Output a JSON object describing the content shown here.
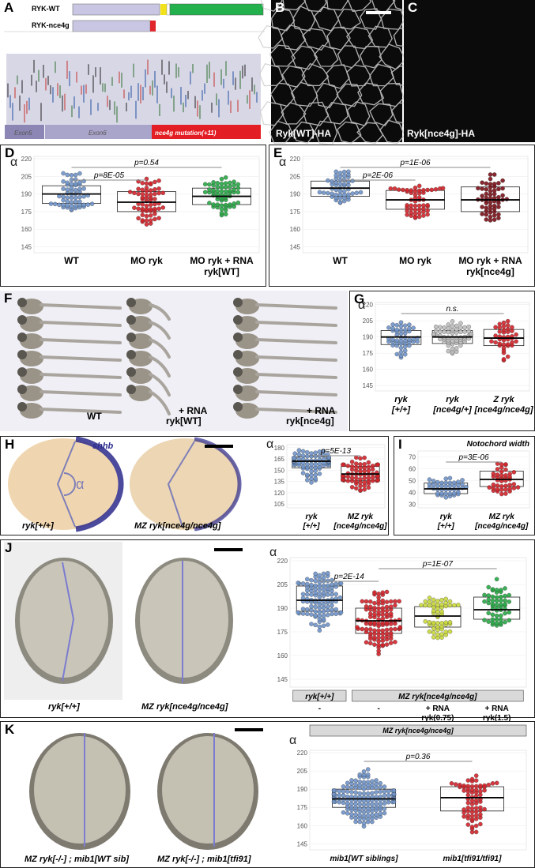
{
  "panels": {
    "A": {
      "label": "A",
      "ryk_wt": "RYK-WT",
      "ryk_nce4g": "RYK-nce4g",
      "exon5": "Exon5",
      "exon6": "Exon6",
      "mutation": "nce4g mutation(+11)"
    },
    "B": {
      "label": "B",
      "caption": "Ryk[WT]-HA"
    },
    "C": {
      "label": "C",
      "caption": "Ryk[nce4g]-HA"
    },
    "D": {
      "label": "D"
    },
    "E": {
      "label": "E"
    },
    "F": {
      "label": "F",
      "captions": [
        "WT",
        "+ RNA",
        "ryk[WT]",
        "+ RNA",
        "ryk[nce4g]"
      ]
    },
    "G": {
      "label": "G"
    },
    "H": {
      "label": "H",
      "gene": "shhb",
      "alpha": "α",
      "img_captions": [
        "ryk[+/+]",
        "MZ ryk[nce4g/nce4g]"
      ]
    },
    "I": {
      "label": "I"
    },
    "J": {
      "label": "J",
      "img_captions": [
        "ryk[+/+]",
        "MZ ryk[nce4g/nce4g]"
      ]
    },
    "K": {
      "label": "K",
      "img_captions": [
        "MZ ryk[-/-] ; mib1[WT sib]",
        "MZ ryk[-/-] ; mib1[tfi91]"
      ]
    }
  },
  "chart_data": [
    {
      "id": "D",
      "type": "scatter",
      "ylabel": "α",
      "ylim": [
        140,
        222
      ],
      "yticks": [
        145,
        160,
        175,
        190,
        205,
        220
      ],
      "categories": [
        "WT",
        "MO ryk",
        "MO ryk + RNA\nryk[WT]"
      ],
      "series": [
        {
          "color": "#6f93c9",
          "n": 58,
          "median": 190,
          "q1": 182,
          "q3": 197,
          "min": 175,
          "max": 210
        },
        {
          "color": "#d2232a",
          "n": 62,
          "median": 183,
          "q1": 175,
          "q3": 192,
          "min": 160,
          "max": 207
        },
        {
          "color": "#27a845",
          "n": 60,
          "median": 188,
          "q1": 181,
          "q3": 195,
          "min": 170,
          "max": 205
        }
      ],
      "pvalues": [
        {
          "text": "p=8E-05",
          "from": 0,
          "to": 1
        },
        {
          "text": "p=0.54",
          "from": 0,
          "to": 2
        }
      ]
    },
    {
      "id": "E",
      "type": "scatter",
      "ylabel": "α",
      "ylim": [
        140,
        222
      ],
      "yticks": [
        145,
        160,
        175,
        190,
        205,
        220
      ],
      "categories": [
        "WT",
        "MO ryk",
        "MO ryk + RNA\nryk[nce4g]"
      ],
      "series": [
        {
          "color": "#6f93c9",
          "n": 50,
          "median": 195,
          "q1": 188,
          "q3": 201,
          "min": 180,
          "max": 212
        },
        {
          "color": "#d2232a",
          "n": 52,
          "median": 185,
          "q1": 177,
          "q3": 193,
          "min": 165,
          "max": 198
        },
        {
          "color": "#7a1018",
          "n": 56,
          "median": 185,
          "q1": 175,
          "q3": 196,
          "min": 162,
          "max": 210
        }
      ],
      "pvalues": [
        {
          "text": "p=2E-06",
          "from": 0,
          "to": 1
        },
        {
          "text": "p=1E-06",
          "from": 0,
          "to": 2
        }
      ]
    },
    {
      "id": "G",
      "type": "scatter",
      "ylabel": "α",
      "ylim": [
        140,
        222
      ],
      "yticks": [
        145,
        160,
        175,
        190,
        205,
        220
      ],
      "categories": [
        "ryk\n[+/+]",
        "ryk\n[nce4g/+]",
        "Z ryk\n[nce4g/nce4g]"
      ],
      "series": [
        {
          "color": "#6f93c9",
          "n": 48,
          "median": 190,
          "q1": 183,
          "q3": 196,
          "min": 168,
          "max": 205
        },
        {
          "color": "#bdbdbd",
          "n": 62,
          "median": 190,
          "q1": 184,
          "q3": 196,
          "min": 170,
          "max": 205
        },
        {
          "color": "#d2232a",
          "n": 40,
          "median": 189,
          "q1": 182,
          "q3": 197,
          "min": 165,
          "max": 205
        }
      ],
      "pvalues": [
        {
          "text": "n.s.",
          "from": 0,
          "to": 2
        }
      ]
    },
    {
      "id": "H",
      "type": "scatter",
      "ylabel": "α",
      "ylim": [
        100,
        184
      ],
      "yticks": [
        105,
        120,
        135,
        150,
        165,
        180
      ],
      "categories": [
        "ryk\n[+/+]",
        "MZ ryk\n[nce4g/nce4g]"
      ],
      "series": [
        {
          "color": "#6f93c9",
          "n": 70,
          "median": 162,
          "q1": 153,
          "q3": 168,
          "min": 128,
          "max": 178
        },
        {
          "color": "#d2232a",
          "n": 70,
          "median": 145,
          "q1": 136,
          "q3": 155,
          "min": 118,
          "max": 170
        }
      ],
      "pvalues": [
        {
          "text": "p=5E-13",
          "from": 0,
          "to": 1
        }
      ]
    },
    {
      "id": "I",
      "type": "scatter",
      "title": "Notochord width",
      "ylim": [
        27,
        75
      ],
      "yticks": [
        30,
        40,
        50,
        60,
        70
      ],
      "categories": [
        "ryk\n[+/+]",
        "MZ ryk\n[nce4g/nce4g]"
      ],
      "series": [
        {
          "color": "#6f93c9",
          "n": 42,
          "median": 43,
          "q1": 39,
          "q3": 48,
          "min": 35,
          "max": 55
        },
        {
          "color": "#d2232a",
          "n": 42,
          "median": 51,
          "q1": 45,
          "q3": 58,
          "min": 37,
          "max": 70
        }
      ],
      "pvalues": [
        {
          "text": "p=3E-06",
          "from": 0,
          "to": 1
        }
      ]
    },
    {
      "id": "J",
      "type": "scatter",
      "ylabel": "α",
      "ylim": [
        140,
        222
      ],
      "yticks": [
        145,
        160,
        175,
        190,
        205,
        220
      ],
      "categories": [
        "-",
        "-",
        "+ RNA\nryk(0.75)",
        "+ RNA\nryk(1.5)"
      ],
      "groups": [
        "ryk[+/+]",
        "MZ ryk[nce4g/nce4g]"
      ],
      "series": [
        {
          "color": "#6f93c9",
          "n": 110,
          "median": 195,
          "q1": 188,
          "q3": 204,
          "min": 172,
          "max": 215
        },
        {
          "color": "#d2232a",
          "n": 110,
          "median": 182,
          "q1": 174,
          "q3": 190,
          "min": 160,
          "max": 202
        },
        {
          "color": "#c9d83a",
          "n": 55,
          "median": 185,
          "q1": 178,
          "q3": 191,
          "min": 168,
          "max": 198
        },
        {
          "color": "#27a845",
          "n": 55,
          "median": 189,
          "q1": 183,
          "q3": 197,
          "min": 177,
          "max": 210
        }
      ],
      "pvalues": [
        {
          "text": "p=2E-14",
          "from": 0,
          "to": 1
        },
        {
          "text": "p=1E-07",
          "from": 1,
          "to": 3
        }
      ]
    },
    {
      "id": "K",
      "type": "scatter",
      "ylabel": "α",
      "title": "MZ ryk[nce4g/nce4g]",
      "ylim": [
        140,
        222
      ],
      "yticks": [
        145,
        160,
        175,
        190,
        205,
        220
      ],
      "categories": [
        "mib1[WT siblings]",
        "mib1[tfi91/tfi91]"
      ],
      "series": [
        {
          "color": "#6f93c9",
          "n": 150,
          "median": 182,
          "q1": 175,
          "q3": 190,
          "min": 157,
          "max": 210
        },
        {
          "color": "#d2232a",
          "n": 70,
          "median": 183,
          "q1": 172,
          "q3": 192,
          "min": 152,
          "max": 205
        }
      ],
      "pvalues": [
        {
          "text": "p=0.36",
          "from": 0,
          "to": 1
        }
      ]
    }
  ]
}
